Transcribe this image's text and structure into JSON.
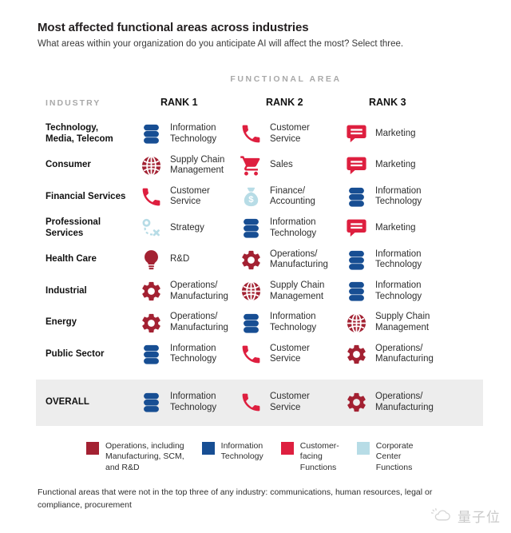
{
  "title": "Most affected functional areas across industries",
  "subtitle": "What areas within your organization do you anticipate AI will affect the most? Select three.",
  "palette": {
    "operations": "#a32132",
    "information_technology": "#174e93",
    "customer_facing": "#de1f3f",
    "corporate_center": "#b7dce6"
  },
  "table": {
    "group_header": "FUNCTIONAL AREA",
    "industry_header": "INDUSTRY",
    "rank_headers": [
      "RANK 1",
      "RANK 2",
      "RANK 3"
    ],
    "rows": [
      {
        "industry": "Technology,\nMedia, Telecom",
        "cells": [
          {
            "icon": "database-icon",
            "category": "information_technology",
            "label": "Information\nTechnology"
          },
          {
            "icon": "phone-icon",
            "category": "customer_facing",
            "label": "Customer\nService"
          },
          {
            "icon": "speech-bubble-icon",
            "category": "customer_facing",
            "label": "Marketing"
          }
        ]
      },
      {
        "industry": "Consumer",
        "cells": [
          {
            "icon": "globe-icon",
            "category": "operations",
            "label": "Supply Chain\nManagement"
          },
          {
            "icon": "cart-icon",
            "category": "customer_facing",
            "label": "Sales"
          },
          {
            "icon": "speech-bubble-icon",
            "category": "customer_facing",
            "label": "Marketing"
          }
        ]
      },
      {
        "industry": "Financial Services",
        "cells": [
          {
            "icon": "phone-icon",
            "category": "customer_facing",
            "label": "Customer\nService"
          },
          {
            "icon": "money-bag-icon",
            "category": "corporate_center",
            "label": "Finance/\nAccounting"
          },
          {
            "icon": "database-icon",
            "category": "information_technology",
            "label": "Information\nTechnology"
          }
        ]
      },
      {
        "industry": "Professional\nServices",
        "cells": [
          {
            "icon": "strategy-icon",
            "category": "corporate_center",
            "label": "Strategy"
          },
          {
            "icon": "database-icon",
            "category": "information_technology",
            "label": "Information\nTechnology"
          },
          {
            "icon": "speech-bubble-icon",
            "category": "customer_facing",
            "label": "Marketing"
          }
        ]
      },
      {
        "industry": "Health Care",
        "cells": [
          {
            "icon": "bulb-icon",
            "category": "operations",
            "label": "R&D"
          },
          {
            "icon": "gear-icon",
            "category": "operations",
            "label": "Operations/\nManufacturing"
          },
          {
            "icon": "database-icon",
            "category": "information_technology",
            "label": "Information\nTechnology"
          }
        ]
      },
      {
        "industry": "Industrial",
        "cells": [
          {
            "icon": "gear-icon",
            "category": "operations",
            "label": "Operations/\nManufacturing"
          },
          {
            "icon": "globe-icon",
            "category": "operations",
            "label": "Supply Chain\nManagement"
          },
          {
            "icon": "database-icon",
            "category": "information_technology",
            "label": "Information\nTechnology"
          }
        ]
      },
      {
        "industry": "Energy",
        "cells": [
          {
            "icon": "gear-icon",
            "category": "operations",
            "label": "Operations/\nManufacturing"
          },
          {
            "icon": "database-icon",
            "category": "information_technology",
            "label": "Information\nTechnology"
          },
          {
            "icon": "globe-icon",
            "category": "operations",
            "label": "Supply Chain\nManagement"
          }
        ]
      },
      {
        "industry": "Public Sector",
        "cells": [
          {
            "icon": "database-icon",
            "category": "information_technology",
            "label": "Information\nTechnology"
          },
          {
            "icon": "phone-icon",
            "category": "customer_facing",
            "label": "Customer\nService"
          },
          {
            "icon": "gear-icon",
            "category": "operations",
            "label": "Operations/\nManufacturing"
          }
        ]
      },
      {
        "industry": "OVERALL",
        "cells": [
          {
            "icon": "database-icon",
            "category": "information_technology",
            "label": "Information\nTechnology"
          },
          {
            "icon": "phone-icon",
            "category": "customer_facing",
            "label": "Customer\nService"
          },
          {
            "icon": "gear-icon",
            "category": "operations",
            "label": "Operations/\nManufacturing"
          }
        ]
      }
    ]
  },
  "legend": {
    "items": [
      {
        "category": "operations",
        "label": "Operations, including\nManufacturing, SCM,\nand R&D"
      },
      {
        "category": "information_technology",
        "label": "Information\nTechnology"
      },
      {
        "category": "customer_facing",
        "label": "Customer-\nfacing\nFunctions"
      },
      {
        "category": "corporate_center",
        "label": "Corporate\nCenter\nFunctions"
      }
    ]
  },
  "footnote": "Functional areas that were not in the top three of any industry: communications, human resources, legal or compliance, procurement",
  "watermark": "量子位",
  "chart_data": {
    "type": "table",
    "title": "Most affected functional areas across industries",
    "subtitle": "What areas within your organization do you anticipate AI will affect the most? Select three.",
    "columns": [
      "Industry",
      "Rank 1",
      "Rank 2",
      "Rank 3"
    ],
    "rows": [
      [
        "Technology, Media, Telecom",
        "Information Technology",
        "Customer Service",
        "Marketing"
      ],
      [
        "Consumer",
        "Supply Chain Management",
        "Sales",
        "Marketing"
      ],
      [
        "Financial Services",
        "Customer Service",
        "Finance/Accounting",
        "Information Technology"
      ],
      [
        "Professional Services",
        "Strategy",
        "Information Technology",
        "Marketing"
      ],
      [
        "Health Care",
        "R&D",
        "Operations/Manufacturing",
        "Information Technology"
      ],
      [
        "Industrial",
        "Operations/Manufacturing",
        "Supply Chain Management",
        "Information Technology"
      ],
      [
        "Energy",
        "Operations/Manufacturing",
        "Information Technology",
        "Supply Chain Management"
      ],
      [
        "Public Sector",
        "Information Technology",
        "Customer Service",
        "Operations/Manufacturing"
      ],
      [
        "OVERALL",
        "Information Technology",
        "Customer Service",
        "Operations/Manufacturing"
      ]
    ],
    "legend": [
      {
        "label": "Operations, including Manufacturing, SCM, and R&D",
        "color": "#a32132"
      },
      {
        "label": "Information Technology",
        "color": "#174e93"
      },
      {
        "label": "Customer-facing Functions",
        "color": "#de1f3f"
      },
      {
        "label": "Corporate Center Functions",
        "color": "#b7dce6"
      }
    ],
    "footnote": "Functional areas that were not in the top three of any industry: communications, human resources, legal or compliance, procurement"
  }
}
